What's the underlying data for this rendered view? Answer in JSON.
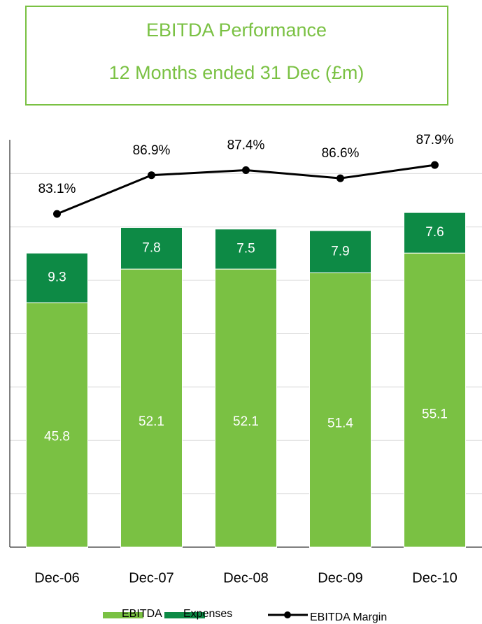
{
  "chart_data": {
    "type": "bar",
    "title": "EBITDA Performance",
    "subtitle": "12 Months ended 31 Dec (£m)",
    "categories": [
      "Dec-06",
      "Dec-07",
      "Dec-08",
      "Dec-09",
      "Dec-10"
    ],
    "stacked": true,
    "series": [
      {
        "name": "EBITDA",
        "type": "bar",
        "color": "#7ac143",
        "values": [
          45.8,
          52.1,
          52.1,
          51.4,
          55.1
        ]
      },
      {
        "name": "Expenses",
        "type": "bar",
        "color": "#0d8a45",
        "values": [
          9.3,
          7.8,
          7.5,
          7.9,
          7.6
        ]
      },
      {
        "name": "EBITDA Margin",
        "type": "line",
        "axis": "y2",
        "color": "#000000",
        "values": [
          83.1,
          86.9,
          87.4,
          86.6,
          87.9
        ],
        "value_labels": [
          "83.1%",
          "86.9%",
          "87.4%",
          "86.6%",
          "87.9%"
        ]
      }
    ],
    "ylim": [
      0,
      80
    ],
    "yticks": [
      0,
      10,
      20,
      30,
      40,
      50,
      60,
      70
    ],
    "y2lim": [
      50.4,
      92.3
    ],
    "grid": true,
    "legend": "bottom"
  }
}
